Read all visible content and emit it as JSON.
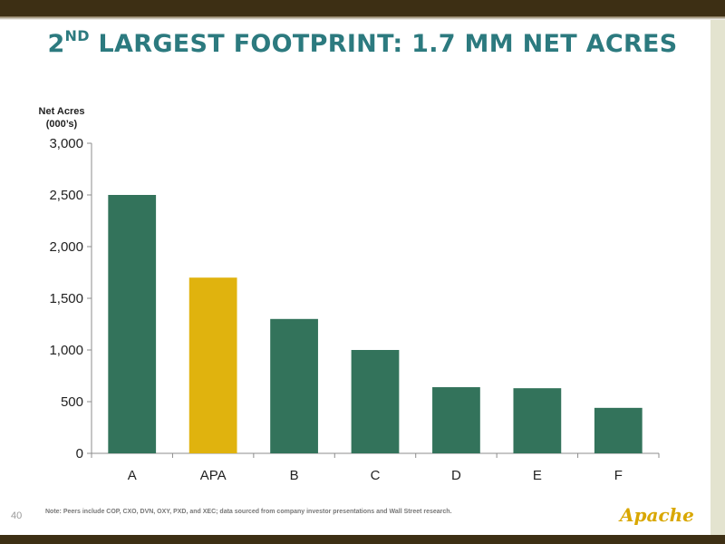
{
  "slide": {
    "title_prefix": "2",
    "title_sup": "ND",
    "title_rest": " LARGEST FOOTPRINT: 1.7 MM NET ACRES",
    "number": "40",
    "note": "Note: Peers include COP, CXO, DVN, OXY, PXD, and XEC; data sourced from company investor presentations and Wall Street research.",
    "logo": "Apache"
  },
  "colors": {
    "bar": "#33735b",
    "highlight": "#e0b30e",
    "title": "#2c7a7f"
  },
  "chart_data": {
    "type": "bar",
    "title": "2ND LARGEST FOOTPRINT: 1.7 MM NET ACRES",
    "ylabel_line1": "Net Acres",
    "ylabel_line2": "(000’s)",
    "xlabel": "",
    "categories": [
      "A",
      "APA",
      "B",
      "C",
      "D",
      "E",
      "F"
    ],
    "values": [
      2500,
      1700,
      1300,
      1000,
      640,
      630,
      440
    ],
    "highlight": "APA",
    "ylim": [
      0,
      3000
    ],
    "yticks": [
      0,
      500,
      1000,
      1500,
      2000,
      2500,
      3000
    ],
    "ytick_labels": [
      "0",
      "500",
      "1,000",
      "1,500",
      "2,000",
      "2,500",
      "3,000"
    ],
    "grid": false,
    "legend": "none"
  }
}
